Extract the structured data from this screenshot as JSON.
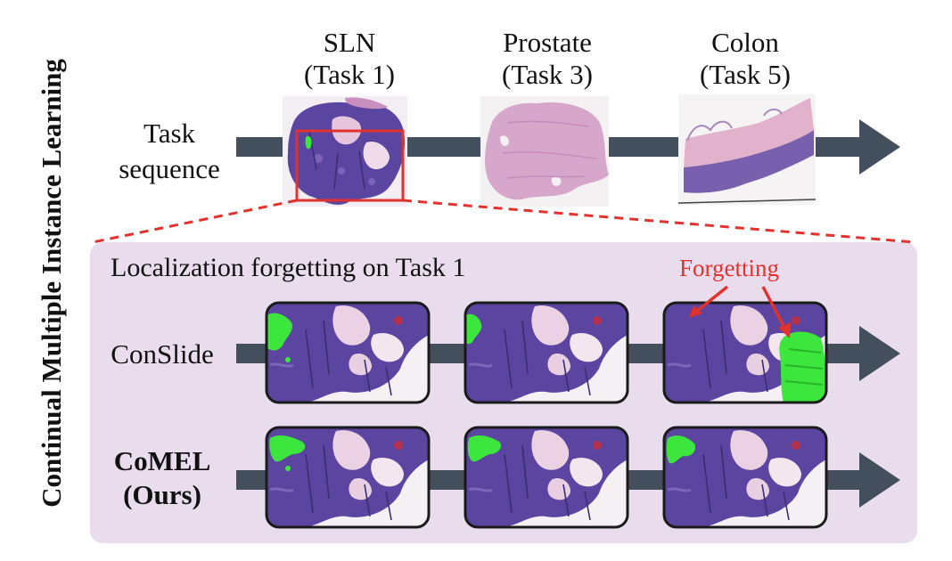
{
  "side_title": "Continual Multiple Instance Learning",
  "sequence": {
    "label_line1": "Task",
    "label_line2": "sequence",
    "tasks": [
      {
        "name": "SLN",
        "task": "(Task 1)"
      },
      {
        "name": "Prostate",
        "task": "(Task 3)"
      },
      {
        "name": "Colon",
        "task": "(Task 5)"
      }
    ]
  },
  "panel": {
    "title": "Localization forgetting on Task 1",
    "annotation": "Forgetting",
    "rows": [
      {
        "label_line1": "ConSlide",
        "label_line2": ""
      },
      {
        "label_line1": "CoMEL",
        "label_line2": "(Ours)"
      }
    ]
  },
  "colors": {
    "arrow": "#444f5e",
    "highlight": "#e2322e",
    "panel_bg": "#e9dded",
    "tissue_purple": "#5b45a0",
    "tissue_pink": "#d9a3c8",
    "attention_green": "#3de63d"
  }
}
